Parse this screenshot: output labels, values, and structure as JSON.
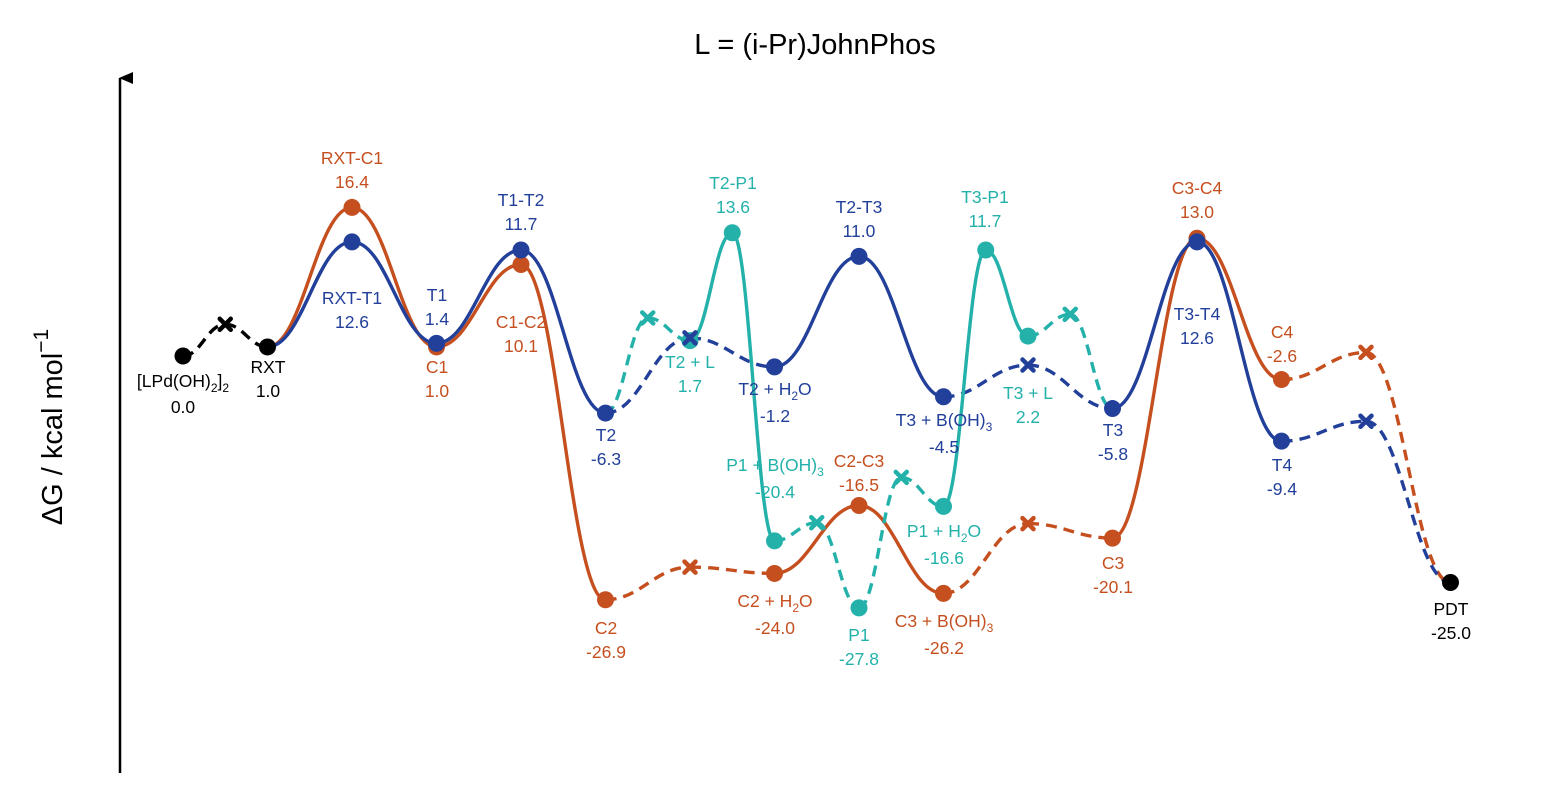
{
  "chart_data": {
    "type": "line",
    "title": "L = (i-Pr)JohnPhos",
    "ylabel": "ΔG / kcal mol",
    "ylabel_superscript": "−1",
    "ylim": [
      -34,
      25
    ],
    "grid": false,
    "colors": {
      "black": "#000000",
      "orange": "#c54f1f",
      "blue": "#22409a",
      "teal": "#23b1aa"
    },
    "points": {
      "start": {
        "name": "[LPd(OH)",
        "name_sub": "2",
        "name_post": "]",
        "name_sub2": "2",
        "value": "0.0",
        "x": 1,
        "y": 0.0
      },
      "rxt": {
        "name": "RXT",
        "value": "1.0",
        "x": 2,
        "y": 1.0
      },
      "rxt_c1": {
        "name": "RXT-C1",
        "value": "16.4",
        "x": 3,
        "y": 16.4
      },
      "rxt_t1": {
        "name": "RXT-T1",
        "value": "12.6",
        "x": 3,
        "y": 12.6
      },
      "t1": {
        "name": "T1",
        "value": "1.4",
        "x": 4,
        "y": 1.4
      },
      "c1": {
        "name": "C1",
        "value": "1.0",
        "x": 4,
        "y": 1.0
      },
      "t1_t2": {
        "name": "T1-T2",
        "value": "11.7",
        "x": 5,
        "y": 11.7
      },
      "c1_c2": {
        "name": "C1-C2",
        "value": "10.1",
        "x": 5,
        "y": 10.1
      },
      "t2": {
        "name": "T2",
        "value": "-6.3",
        "x": 6,
        "y": -6.3
      },
      "c2": {
        "name": "C2",
        "value": "-26.9",
        "x": 6,
        "y": -26.9
      },
      "t2_l": {
        "name": "T2 + L",
        "value": "1.7",
        "x": 7,
        "y": 1.7
      },
      "t2_p1": {
        "name": "T2-P1",
        "value": "13.6",
        "x": 7.5,
        "y": 13.6
      },
      "t2_h2o": {
        "name": "T2 + H",
        "name_sub": "2",
        "name_post": "O",
        "value": "-1.2",
        "x": 8,
        "y": -1.2
      },
      "p1_boh3": {
        "name": "P1 + B(OH)",
        "name_sub": "3",
        "value": "-20.4",
        "x": 8,
        "y": -20.4
      },
      "c2_h2o": {
        "name": "C2 + H",
        "name_sub": "2",
        "name_post": "O",
        "value": "-24.0",
        "x": 8,
        "y": -24.0
      },
      "t2_t3": {
        "name": "T2-T3",
        "value": "11.0",
        "x": 9,
        "y": 11.0
      },
      "c2_c3": {
        "name": "C2-C3",
        "value": "-16.5",
        "x": 9,
        "y": -16.5
      },
      "p1": {
        "name": "P1",
        "value": "-27.8",
        "x": 9,
        "y": -27.8
      },
      "t3_boh3": {
        "name": "T3 + B(OH)",
        "name_sub": "3",
        "value": "-4.5",
        "x": 10,
        "y": -4.5
      },
      "p1_h2o": {
        "name": "P1 + H",
        "name_sub": "2",
        "name_post": "O",
        "value": "-16.6",
        "x": 10,
        "y": -16.6
      },
      "c3_boh3": {
        "name": "C3 + B(OH)",
        "name_sub": "3",
        "value": "-26.2",
        "x": 10,
        "y": -26.2
      },
      "t3_p1": {
        "name": "T3-P1",
        "value": "11.7",
        "x": 10.5,
        "y": 11.7
      },
      "t3_l": {
        "name": "T3 + L",
        "value": "2.2",
        "x": 11,
        "y": 2.2
      },
      "t3": {
        "name": "T3",
        "value": "-5.8",
        "x": 12,
        "y": -5.8
      },
      "c3": {
        "name": "C3",
        "value": "-20.1",
        "x": 12,
        "y": -20.1
      },
      "c3_c4": {
        "name": "C3-C4",
        "value": "13.0",
        "x": 13,
        "y": 13.0
      },
      "t3_t4": {
        "name": "T3-T4",
        "value": "12.6",
        "x": 13,
        "y": 12.6
      },
      "c4": {
        "name": "C4",
        "value": "-2.6",
        "x": 14,
        "y": -2.6
      },
      "t4": {
        "name": "T4",
        "value": "-9.4",
        "x": 14,
        "y": -9.4
      },
      "pdt": {
        "name": "PDT",
        "value": "-25.0",
        "x": 16,
        "y": -25.0
      }
    },
    "crosses": [
      {
        "series": "black",
        "x": 1.5,
        "y": 3.5
      },
      {
        "series": "teal",
        "x": 6.5,
        "y": 4.2
      },
      {
        "series": "blue",
        "x": 7,
        "y": 2.0
      },
      {
        "series": "orange",
        "x": 7,
        "y": -23.3
      },
      {
        "series": "teal",
        "x": 8.5,
        "y": -18.4
      },
      {
        "series": "teal",
        "x": 9.5,
        "y": -13.4
      },
      {
        "series": "orange",
        "x": 11,
        "y": -18.5
      },
      {
        "series": "blue",
        "x": -1,
        "y": -1.0,
        "comment_x": 11
      },
      {
        "series": "teal",
        "x": 11.5,
        "y": 4.6
      },
      {
        "series": "orange",
        "x": 15,
        "y": 0.4
      },
      {
        "series": "blue",
        "x": 15,
        "y": -7.2
      }
    ]
  }
}
